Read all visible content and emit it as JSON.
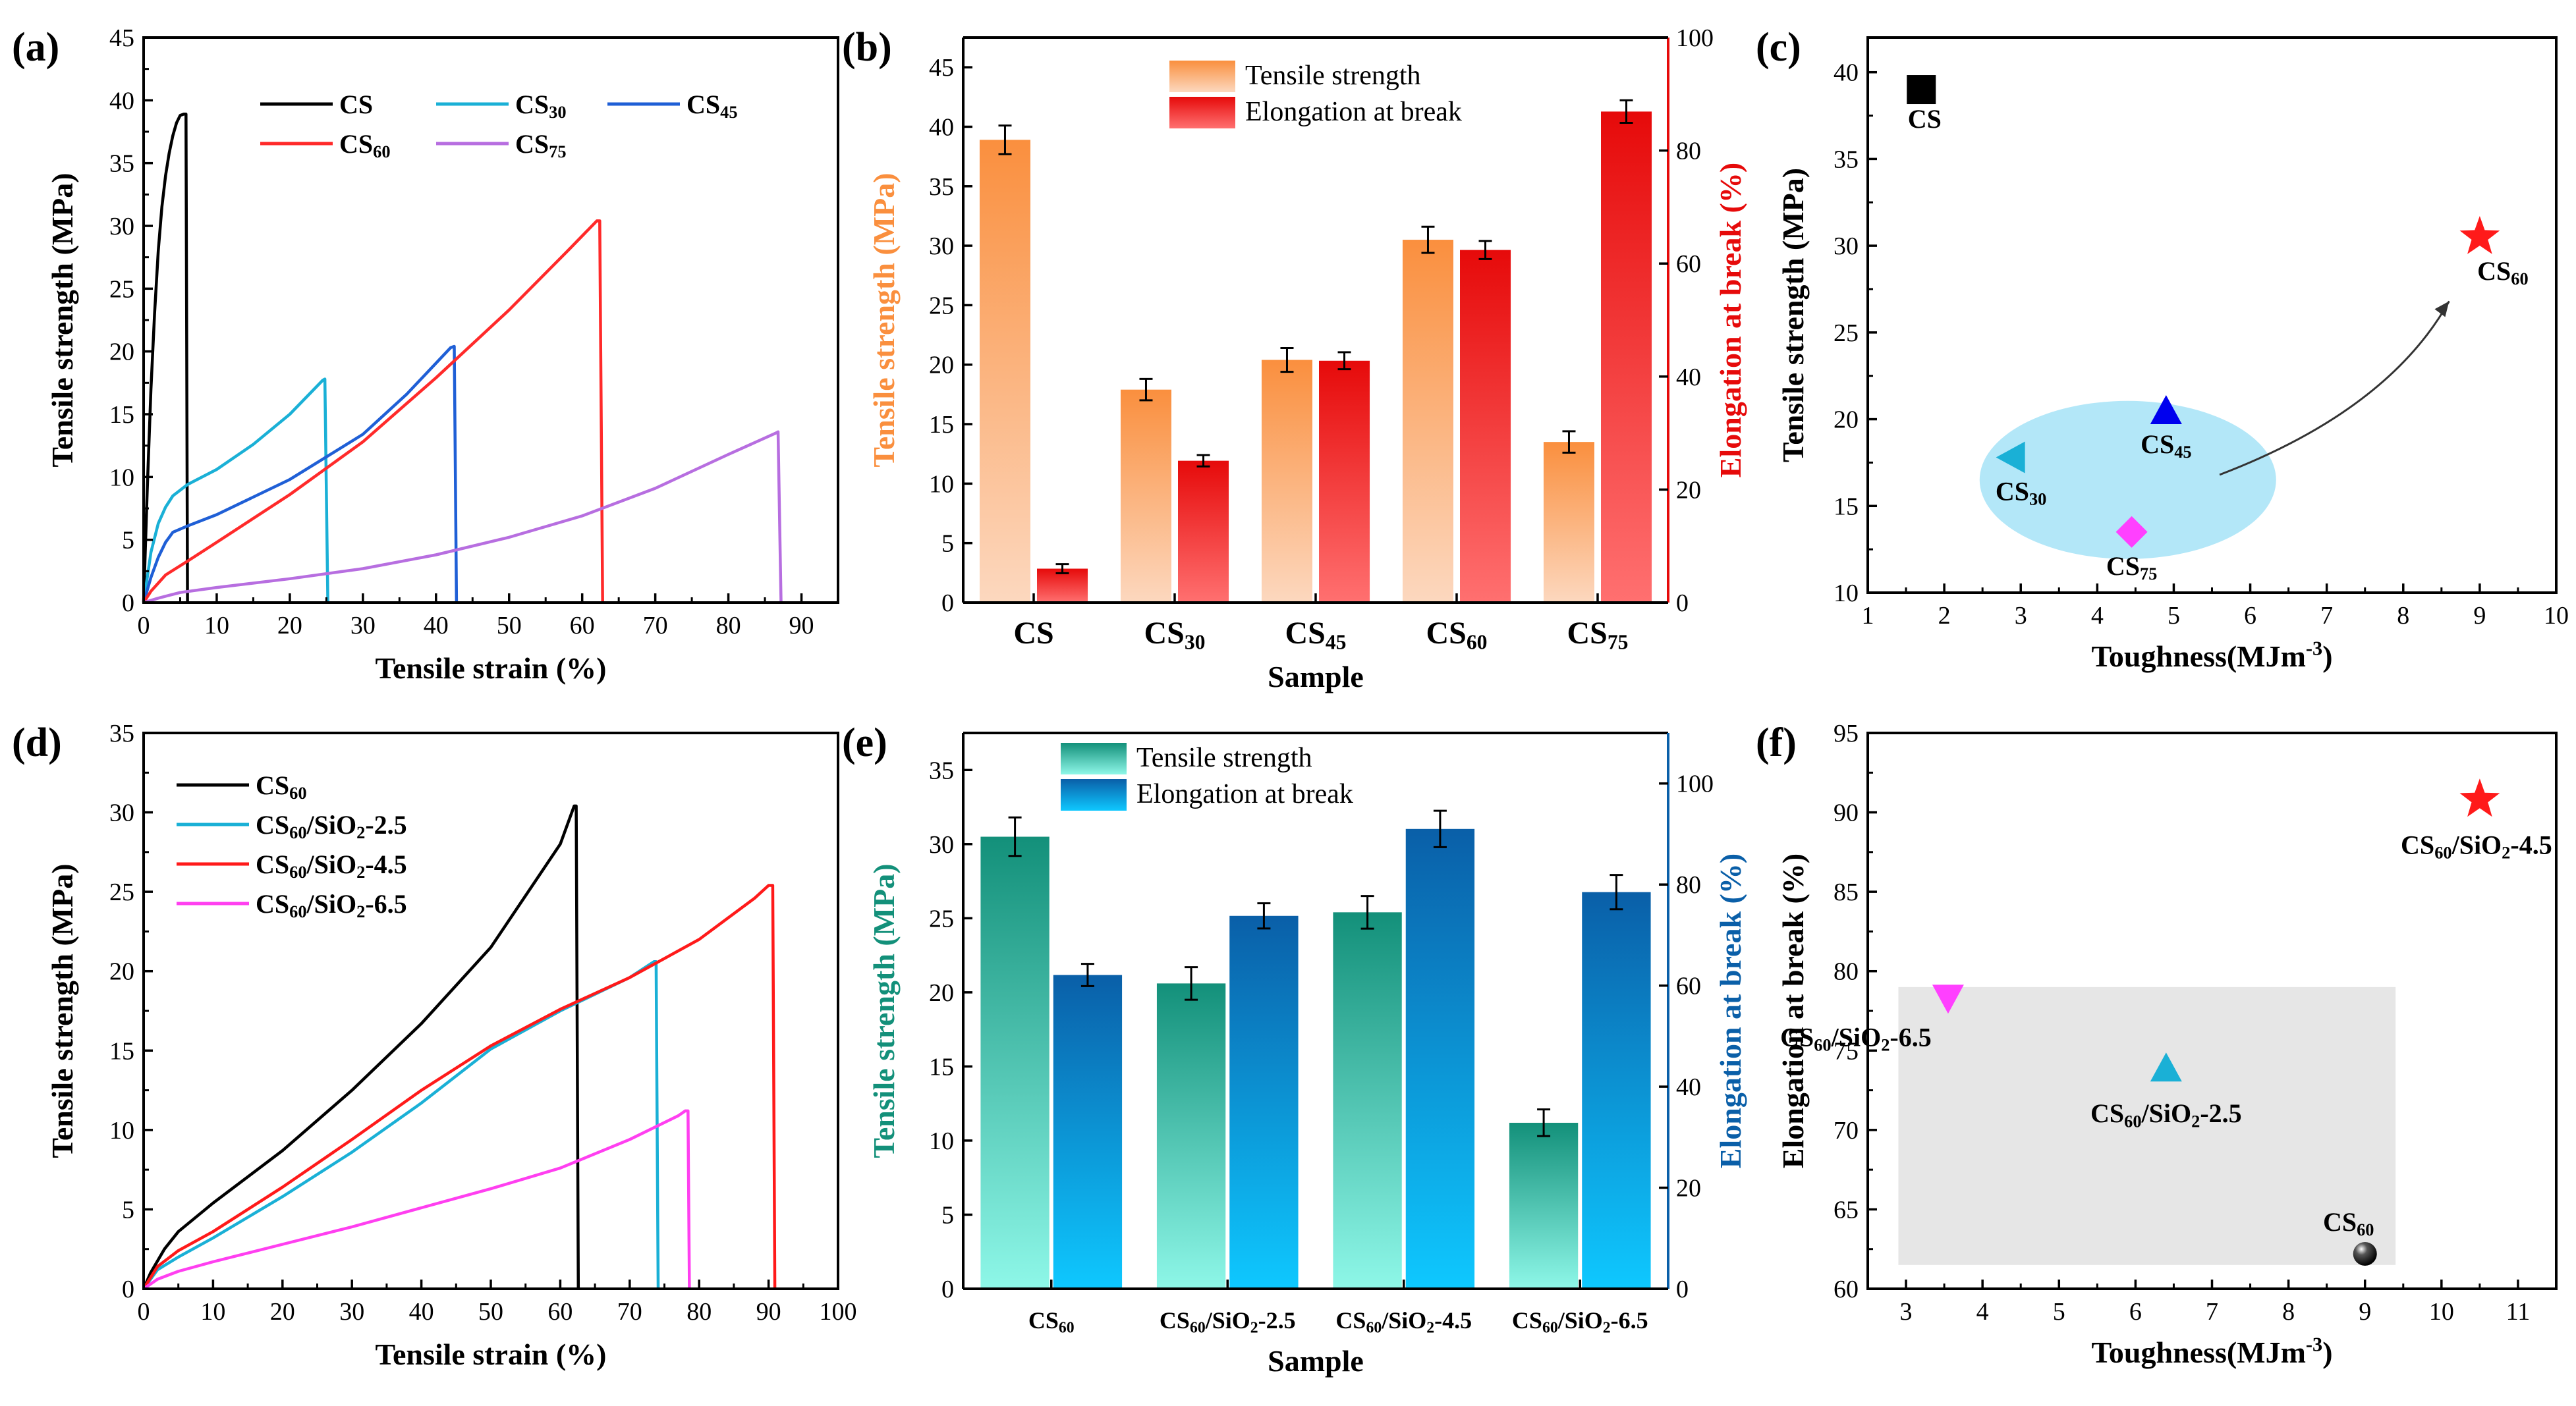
{
  "chart_data": [
    {
      "panel": "(a)",
      "type": "line",
      "xlabel": "Tensile strain (%)",
      "ylabel": "Tensile strength (MPa)",
      "xlim": [
        0,
        95
      ],
      "ylim": [
        0,
        45
      ],
      "xticks": [
        0,
        10,
        20,
        30,
        40,
        50,
        60,
        70,
        80,
        90
      ],
      "yticks": [
        0,
        5,
        10,
        15,
        20,
        25,
        30,
        35,
        40,
        45
      ],
      "series": [
        {
          "name": "CS",
          "sub": "",
          "color": "#000000",
          "points": [
            [
              0,
              0
            ],
            [
              0.5,
              9
            ],
            [
              1,
              17
            ],
            [
              1.5,
              23
            ],
            [
              2,
              28
            ],
            [
              2.5,
              31.5
            ],
            [
              3,
              34
            ],
            [
              3.5,
              35.8
            ],
            [
              4,
              37.2
            ],
            [
              4.5,
              38.2
            ],
            [
              5,
              38.8
            ],
            [
              5.5,
              38.9
            ],
            [
              5.8,
              38.9
            ],
            [
              6,
              0
            ]
          ]
        },
        {
          "name": "CS",
          "sub": "30",
          "color": "#1ab0d6",
          "points": [
            [
              0,
              0
            ],
            [
              1,
              4
            ],
            [
              2,
              6.3
            ],
            [
              3,
              7.6
            ],
            [
              4,
              8.5
            ],
            [
              6,
              9.4
            ],
            [
              10,
              10.6
            ],
            [
              15,
              12.6
            ],
            [
              20,
              15
            ],
            [
              24.5,
              17.7
            ],
            [
              24.8,
              17.8
            ],
            [
              25.2,
              0
            ]
          ]
        },
        {
          "name": "CS",
          "sub": "45",
          "color": "#1f5fd6",
          "points": [
            [
              0,
              0
            ],
            [
              1,
              2
            ],
            [
              2,
              3.6
            ],
            [
              3,
              4.8
            ],
            [
              4,
              5.6
            ],
            [
              6,
              6.1
            ],
            [
              10,
              7
            ],
            [
              20,
              9.8
            ],
            [
              30,
              13.4
            ],
            [
              36,
              16.6
            ],
            [
              42,
              20.3
            ],
            [
              42.5,
              20.4
            ],
            [
              42.8,
              0
            ]
          ]
        },
        {
          "name": "CS",
          "sub": "60",
          "color": "#ff2a2a",
          "points": [
            [
              0,
              0
            ],
            [
              1,
              0.9
            ],
            [
              3,
              2.2
            ],
            [
              6,
              3.3
            ],
            [
              10,
              4.8
            ],
            [
              20,
              8.6
            ],
            [
              30,
              12.8
            ],
            [
              40,
              17.9
            ],
            [
              50,
              23.3
            ],
            [
              58,
              28
            ],
            [
              62,
              30.4
            ],
            [
              62.4,
              30.4
            ],
            [
              62.8,
              0
            ]
          ]
        },
        {
          "name": "CS",
          "sub": "75",
          "color": "#b76ee0",
          "points": [
            [
              0,
              0
            ],
            [
              2,
              0.35
            ],
            [
              5,
              0.8
            ],
            [
              10,
              1.2
            ],
            [
              20,
              1.9
            ],
            [
              30,
              2.7
            ],
            [
              40,
              3.8
            ],
            [
              50,
              5.2
            ],
            [
              60,
              6.9
            ],
            [
              70,
              9.1
            ],
            [
              80,
              11.8
            ],
            [
              86.5,
              13.5
            ],
            [
              86.8,
              13.6
            ],
            [
              87.2,
              0
            ]
          ]
        }
      ]
    },
    {
      "panel": "(b)",
      "type": "bar",
      "xlabel": "Sample",
      "ylabel": "Tensile strength (MPa)",
      "y2label": "Elongation at break (%)",
      "ylim": [
        0,
        47.5
      ],
      "y2lim": [
        0,
        100
      ],
      "yticks": [
        0,
        5,
        10,
        15,
        20,
        25,
        30,
        35,
        40,
        45
      ],
      "y2ticks": [
        0,
        20,
        40,
        60,
        80,
        100
      ],
      "categories": [
        {
          "name": "CS",
          "sub": ""
        },
        {
          "name": "CS",
          "sub": "30"
        },
        {
          "name": "CS",
          "sub": "45"
        },
        {
          "name": "CS",
          "sub": "60"
        },
        {
          "name": "CS",
          "sub": "75"
        }
      ],
      "series": [
        {
          "name": "Tensile strength",
          "axis": "left",
          "colors": [
            "#fcd8bf",
            "#fa8f3e"
          ],
          "values": [
            38.9,
            17.9,
            20.4,
            30.5,
            13.5
          ],
          "errors": [
            1.2,
            0.9,
            1.0,
            1.1,
            0.9
          ]
        },
        {
          "name": "Elongation at break",
          "axis": "right",
          "colors": [
            "#ff7070",
            "#e60a0a"
          ],
          "values": [
            6.0,
            25.1,
            42.8,
            62.4,
            86.9
          ],
          "errors": [
            0.8,
            1.0,
            1.5,
            1.6,
            2.0
          ]
        }
      ]
    },
    {
      "panel": "(c)",
      "type": "scatter",
      "xlabel": "Toughness(MJm",
      "xlabel_sup": "-3",
      "xlabel_end": ")",
      "ylabel": "Tensile strength (MPa)",
      "xlim": [
        1,
        10
      ],
      "ylim": [
        10,
        42
      ],
      "xticks": [
        1,
        2,
        3,
        4,
        5,
        6,
        7,
        8,
        9,
        10
      ],
      "yticks": [
        10,
        15,
        20,
        25,
        30,
        35,
        40
      ],
      "points": [
        {
          "name": "CS",
          "sub": "",
          "x": 1.7,
          "y": 39.0,
          "marker": "square",
          "color": "#000000"
        },
        {
          "name": "CS",
          "sub": "30",
          "x": 2.9,
          "y": 17.8,
          "marker": "tri-left",
          "color": "#1ab0d6"
        },
        {
          "name": "CS",
          "sub": "45",
          "x": 4.9,
          "y": 20.4,
          "marker": "tri-up",
          "color": "#0000ee"
        },
        {
          "name": "CS",
          "sub": "60",
          "x": 9.0,
          "y": 30.5,
          "marker": "star",
          "color": "#ff1a1a"
        },
        {
          "name": "CS",
          "sub": "75",
          "x": 4.45,
          "y": 13.5,
          "marker": "diamond",
          "color": "#ff40ff"
        }
      ]
    },
    {
      "panel": "(d)",
      "type": "line",
      "xlabel": "Tensile strain (%)",
      "ylabel": "Tensile strength (MPa)",
      "xlim": [
        0,
        100
      ],
      "ylim": [
        0,
        35
      ],
      "xticks": [
        0,
        10,
        20,
        30,
        40,
        50,
        60,
        70,
        80,
        90,
        100
      ],
      "yticks": [
        0,
        5,
        10,
        15,
        20,
        25,
        30,
        35
      ],
      "series": [
        {
          "name": "CS",
          "sub": "60",
          "rest": "",
          "color": "#000000",
          "points": [
            [
              0,
              0
            ],
            [
              1,
              1
            ],
            [
              3,
              2.5
            ],
            [
              5,
              3.6
            ],
            [
              10,
              5.4
            ],
            [
              20,
              8.7
            ],
            [
              30,
              12.5
            ],
            [
              40,
              16.7
            ],
            [
              50,
              21.5
            ],
            [
              60,
              28
            ],
            [
              62,
              30.4
            ],
            [
              62.3,
              30.4
            ],
            [
              62.6,
              0
            ]
          ]
        },
        {
          "name": "CS",
          "sub": "60",
          "rest": "/SiO",
          "sub2": "2",
          "rest2": "-2.5",
          "color": "#1ab0d6",
          "points": [
            [
              0,
              0
            ],
            [
              2,
              1.2
            ],
            [
              5,
              2
            ],
            [
              10,
              3.2
            ],
            [
              20,
              5.8
            ],
            [
              30,
              8.6
            ],
            [
              40,
              11.7
            ],
            [
              50,
              15.1
            ],
            [
              60,
              17.5
            ],
            [
              70,
              19.6
            ],
            [
              73.5,
              20.6
            ],
            [
              73.8,
              20.6
            ],
            [
              74.1,
              0
            ]
          ]
        },
        {
          "name": "CS",
          "sub": "60",
          "rest": "/SiO",
          "sub2": "2",
          "rest2": "-4.5",
          "color": "#ff1a1a",
          "points": [
            [
              0,
              0
            ],
            [
              2,
              1.4
            ],
            [
              5,
              2.4
            ],
            [
              10,
              3.6
            ],
            [
              20,
              6.4
            ],
            [
              30,
              9.4
            ],
            [
              40,
              12.5
            ],
            [
              50,
              15.3
            ],
            [
              60,
              17.6
            ],
            [
              70,
              19.6
            ],
            [
              80,
              22
            ],
            [
              88,
              24.6
            ],
            [
              90,
              25.4
            ],
            [
              90.6,
              25.4
            ],
            [
              90.9,
              0
            ]
          ]
        },
        {
          "name": "CS",
          "sub": "60",
          "rest": "/SiO",
          "sub2": "2",
          "rest2": "-6.5",
          "color": "#ff3ff0",
          "points": [
            [
              0,
              0
            ],
            [
              2,
              0.6
            ],
            [
              5,
              1.1
            ],
            [
              10,
              1.7
            ],
            [
              20,
              2.8
            ],
            [
              30,
              3.9
            ],
            [
              40,
              5.1
            ],
            [
              50,
              6.3
            ],
            [
              60,
              7.6
            ],
            [
              70,
              9.4
            ],
            [
              77,
              10.9
            ],
            [
              78,
              11.2
            ],
            [
              78.4,
              11.2
            ],
            [
              78.6,
              0
            ]
          ]
        }
      ]
    },
    {
      "panel": "(e)",
      "type": "bar",
      "xlabel": "Sample",
      "ylabel": "Tensile strength (MPa)",
      "y2label": "Elongation at break (%)",
      "ylim": [
        0,
        37.5
      ],
      "y2lim": [
        0,
        110
      ],
      "yticks": [
        0,
        5,
        10,
        15,
        20,
        25,
        30,
        35
      ],
      "y2ticks": [
        0,
        20,
        40,
        60,
        80,
        100
      ],
      "categories": [
        {
          "name": "CS",
          "sub": "60",
          "rest": "",
          "sub2": "",
          "rest2": ""
        },
        {
          "name": "CS",
          "sub": "60",
          "rest": "/SiO",
          "sub2": "2",
          "rest2": "-2.5"
        },
        {
          "name": "CS",
          "sub": "60",
          "rest": "/SiO",
          "sub2": "2",
          "rest2": "-4.5"
        },
        {
          "name": "CS",
          "sub": "60",
          "rest": "/SiO",
          "sub2": "2",
          "rest2": "-6.5"
        }
      ],
      "series": [
        {
          "name": "Tensile strength",
          "axis": "left",
          "colors": [
            "#8ef7e8",
            "#13907a"
          ],
          "values": [
            30.5,
            20.6,
            25.4,
            11.2
          ],
          "errors": [
            1.3,
            1.1,
            1.1,
            0.9
          ]
        },
        {
          "name": "Elongation at break",
          "axis": "right",
          "colors": [
            "#0ec8ff",
            "#0a5fa8"
          ],
          "values": [
            62.1,
            73.8,
            91.0,
            78.5
          ],
          "errors": [
            2.2,
            2.5,
            3.6,
            3.4
          ]
        }
      ]
    },
    {
      "panel": "(f)",
      "type": "scatter",
      "xlabel": "Toughness(MJm",
      "xlabel_sup": "-3",
      "xlabel_end": ")",
      "ylabel": "Elongation at break (%)",
      "xlim": [
        2.5,
        11.5
      ],
      "ylim": [
        60,
        95
      ],
      "xticks": [
        3,
        4,
        5,
        6,
        7,
        8,
        9,
        10,
        11
      ],
      "yticks": [
        60,
        65,
        70,
        75,
        80,
        85,
        90,
        95
      ],
      "points": [
        {
          "name": "CS",
          "sub": "60",
          "rest": "/SiO",
          "sub2": "2",
          "rest2": "-4.5",
          "x": 10.5,
          "y": 90.8,
          "marker": "star",
          "color": "#ff1a1a"
        },
        {
          "name": "CS",
          "sub": "60",
          "rest": "/SiO",
          "sub2": "2",
          "rest2": "-6.5",
          "x": 3.55,
          "y": 78.4,
          "marker": "tri-down",
          "color": "#ff40ff"
        },
        {
          "name": "CS",
          "sub": "60",
          "rest": "/SiO",
          "sub2": "2",
          "rest2": "-2.5",
          "x": 6.4,
          "y": 73.8,
          "marker": "tri-up",
          "color": "#1ab0d6"
        },
        {
          "name": "CS",
          "sub": "60",
          "rest": "",
          "sub2": "",
          "rest2": "",
          "x": 9.0,
          "y": 62.2,
          "marker": "sphere",
          "color": "#000000"
        }
      ]
    }
  ]
}
